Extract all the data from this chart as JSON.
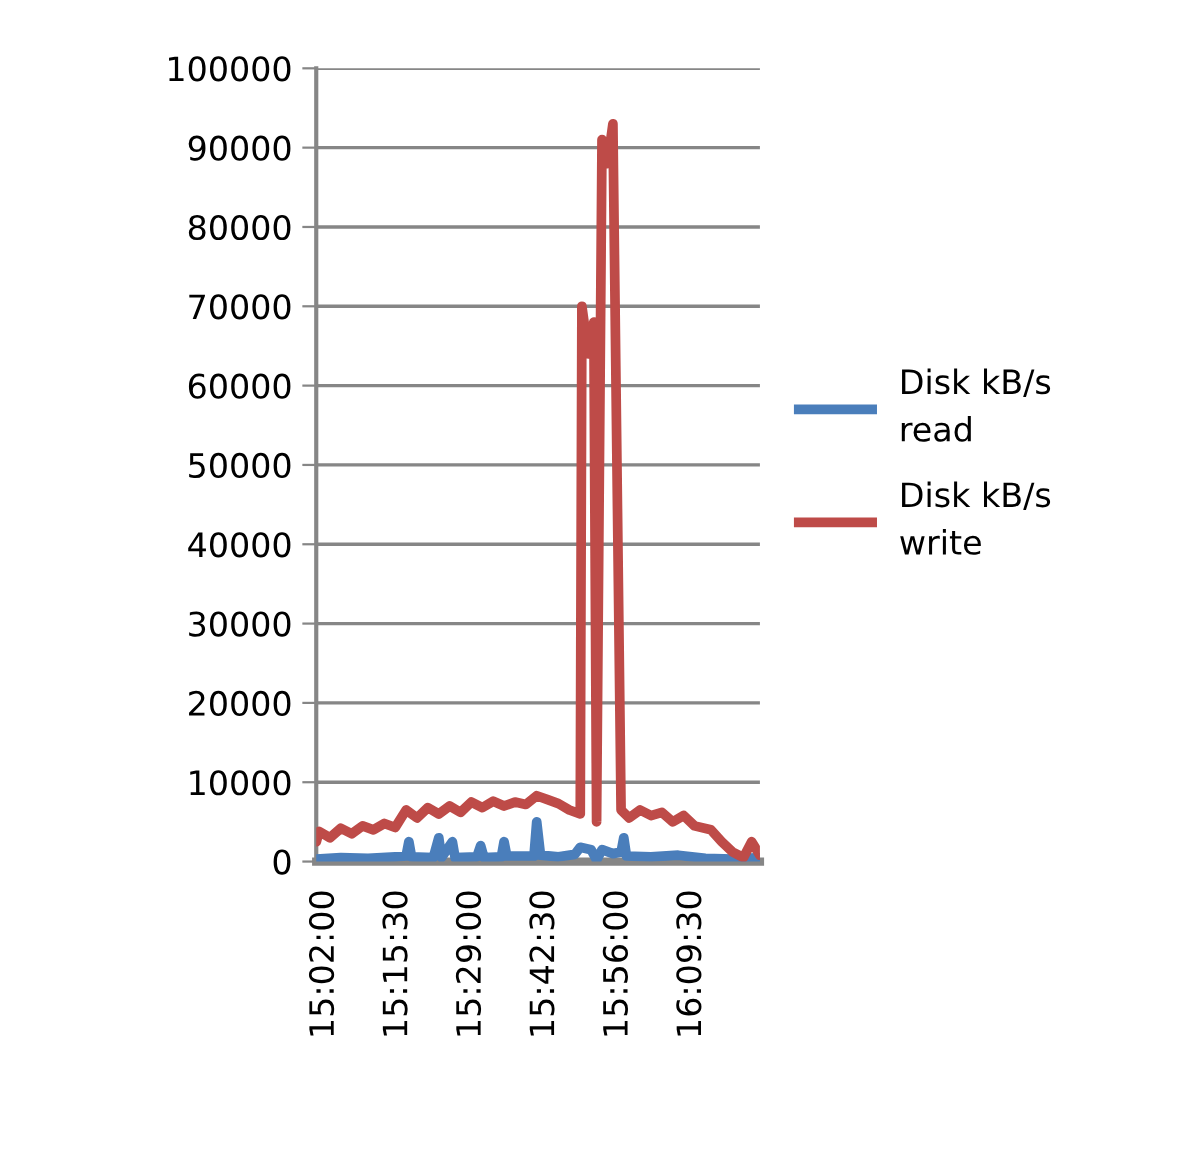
{
  "chart_data": {
    "type": "line",
    "xlim": [
      15.008,
      16.367
    ],
    "xticks": [
      {
        "value": 15.0333,
        "label": "15:02:00"
      },
      {
        "value": 15.2583,
        "label": "15:15:30"
      },
      {
        "value": 15.4833,
        "label": "15:29:00"
      },
      {
        "value": 15.7083,
        "label": "15:42:30"
      },
      {
        "value": 15.9333,
        "label": "15:56:00"
      },
      {
        "value": 16.1583,
        "label": "16:09:30"
      }
    ],
    "ylim": [
      0,
      100000
    ],
    "yticks": [
      0,
      10000,
      20000,
      30000,
      40000,
      50000,
      60000,
      70000,
      80000,
      90000,
      100000
    ],
    "grid": "y",
    "legend": "right",
    "marker": "none",
    "line_style": "solid",
    "series": [
      {
        "name": "Disk kB/s read",
        "color": "#4a7ebb",
        "x": [
          15.0083,
          15.0833,
          15.1667,
          15.25,
          15.2833,
          15.2917,
          15.3,
          15.3667,
          15.3833,
          15.3917,
          15.425,
          15.4333,
          15.5,
          15.5117,
          15.5217,
          15.575,
          15.5833,
          15.5917,
          15.675,
          15.6833,
          15.695,
          15.75,
          15.8,
          15.8167,
          15.85,
          15.8667,
          15.8833,
          15.9167,
          15.9417,
          15.95,
          15.9583,
          16.0333,
          16.1167,
          16.2,
          16.2833,
          16.3667
        ],
        "values": [
          300,
          500,
          400,
          600,
          700,
          2500,
          600,
          500,
          3000,
          500,
          2500,
          500,
          600,
          2000,
          500,
          600,
          2500,
          700,
          700,
          5000,
          800,
          600,
          900,
          1800,
          1500,
          200,
          1500,
          1000,
          1200,
          3000,
          700,
          600,
          800,
          400,
          300,
          500
        ]
      },
      {
        "name": "Disk kB/s write",
        "color": "#be4b48",
        "x": [
          15.0083,
          15.0167,
          15.05,
          15.0833,
          15.1167,
          15.15,
          15.1833,
          15.2167,
          15.25,
          15.2833,
          15.3167,
          15.35,
          15.3833,
          15.4167,
          15.45,
          15.4833,
          15.5167,
          15.55,
          15.5833,
          15.6167,
          15.65,
          15.6833,
          15.7167,
          15.75,
          15.7833,
          15.8167,
          15.8217,
          15.8417,
          15.8583,
          15.8667,
          15.8833,
          15.9,
          15.9167,
          15.9417,
          15.9667,
          16.0,
          16.0333,
          16.0667,
          16.1,
          16.1333,
          16.1667,
          16.2167,
          16.25,
          16.2833,
          16.3167,
          16.3417,
          16.3667
        ],
        "values": [
          2500,
          3800,
          3000,
          4200,
          3500,
          4500,
          4000,
          4800,
          4300,
          6500,
          5500,
          6800,
          6000,
          7000,
          6200,
          7500,
          6800,
          7600,
          7000,
          7500,
          7200,
          8300,
          7800,
          7300,
          6500,
          6000,
          70000,
          64000,
          68000,
          5000,
          91000,
          88000,
          93000,
          6500,
          5500,
          6500,
          5800,
          6200,
          5000,
          5800,
          4500,
          4000,
          2500,
          1200,
          500,
          2500,
          800
        ]
      }
    ]
  }
}
